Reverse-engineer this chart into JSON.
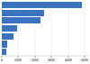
{
  "values": [
    4813,
    2571,
    2326,
    942,
    689,
    336,
    247
  ],
  "bar_color": "#3a74c0",
  "background_color": "#ffffff",
  "xlim": [
    0,
    5200
  ],
  "bar_height": 0.82,
  "fig_width": 1.0,
  "fig_height": 0.71
}
